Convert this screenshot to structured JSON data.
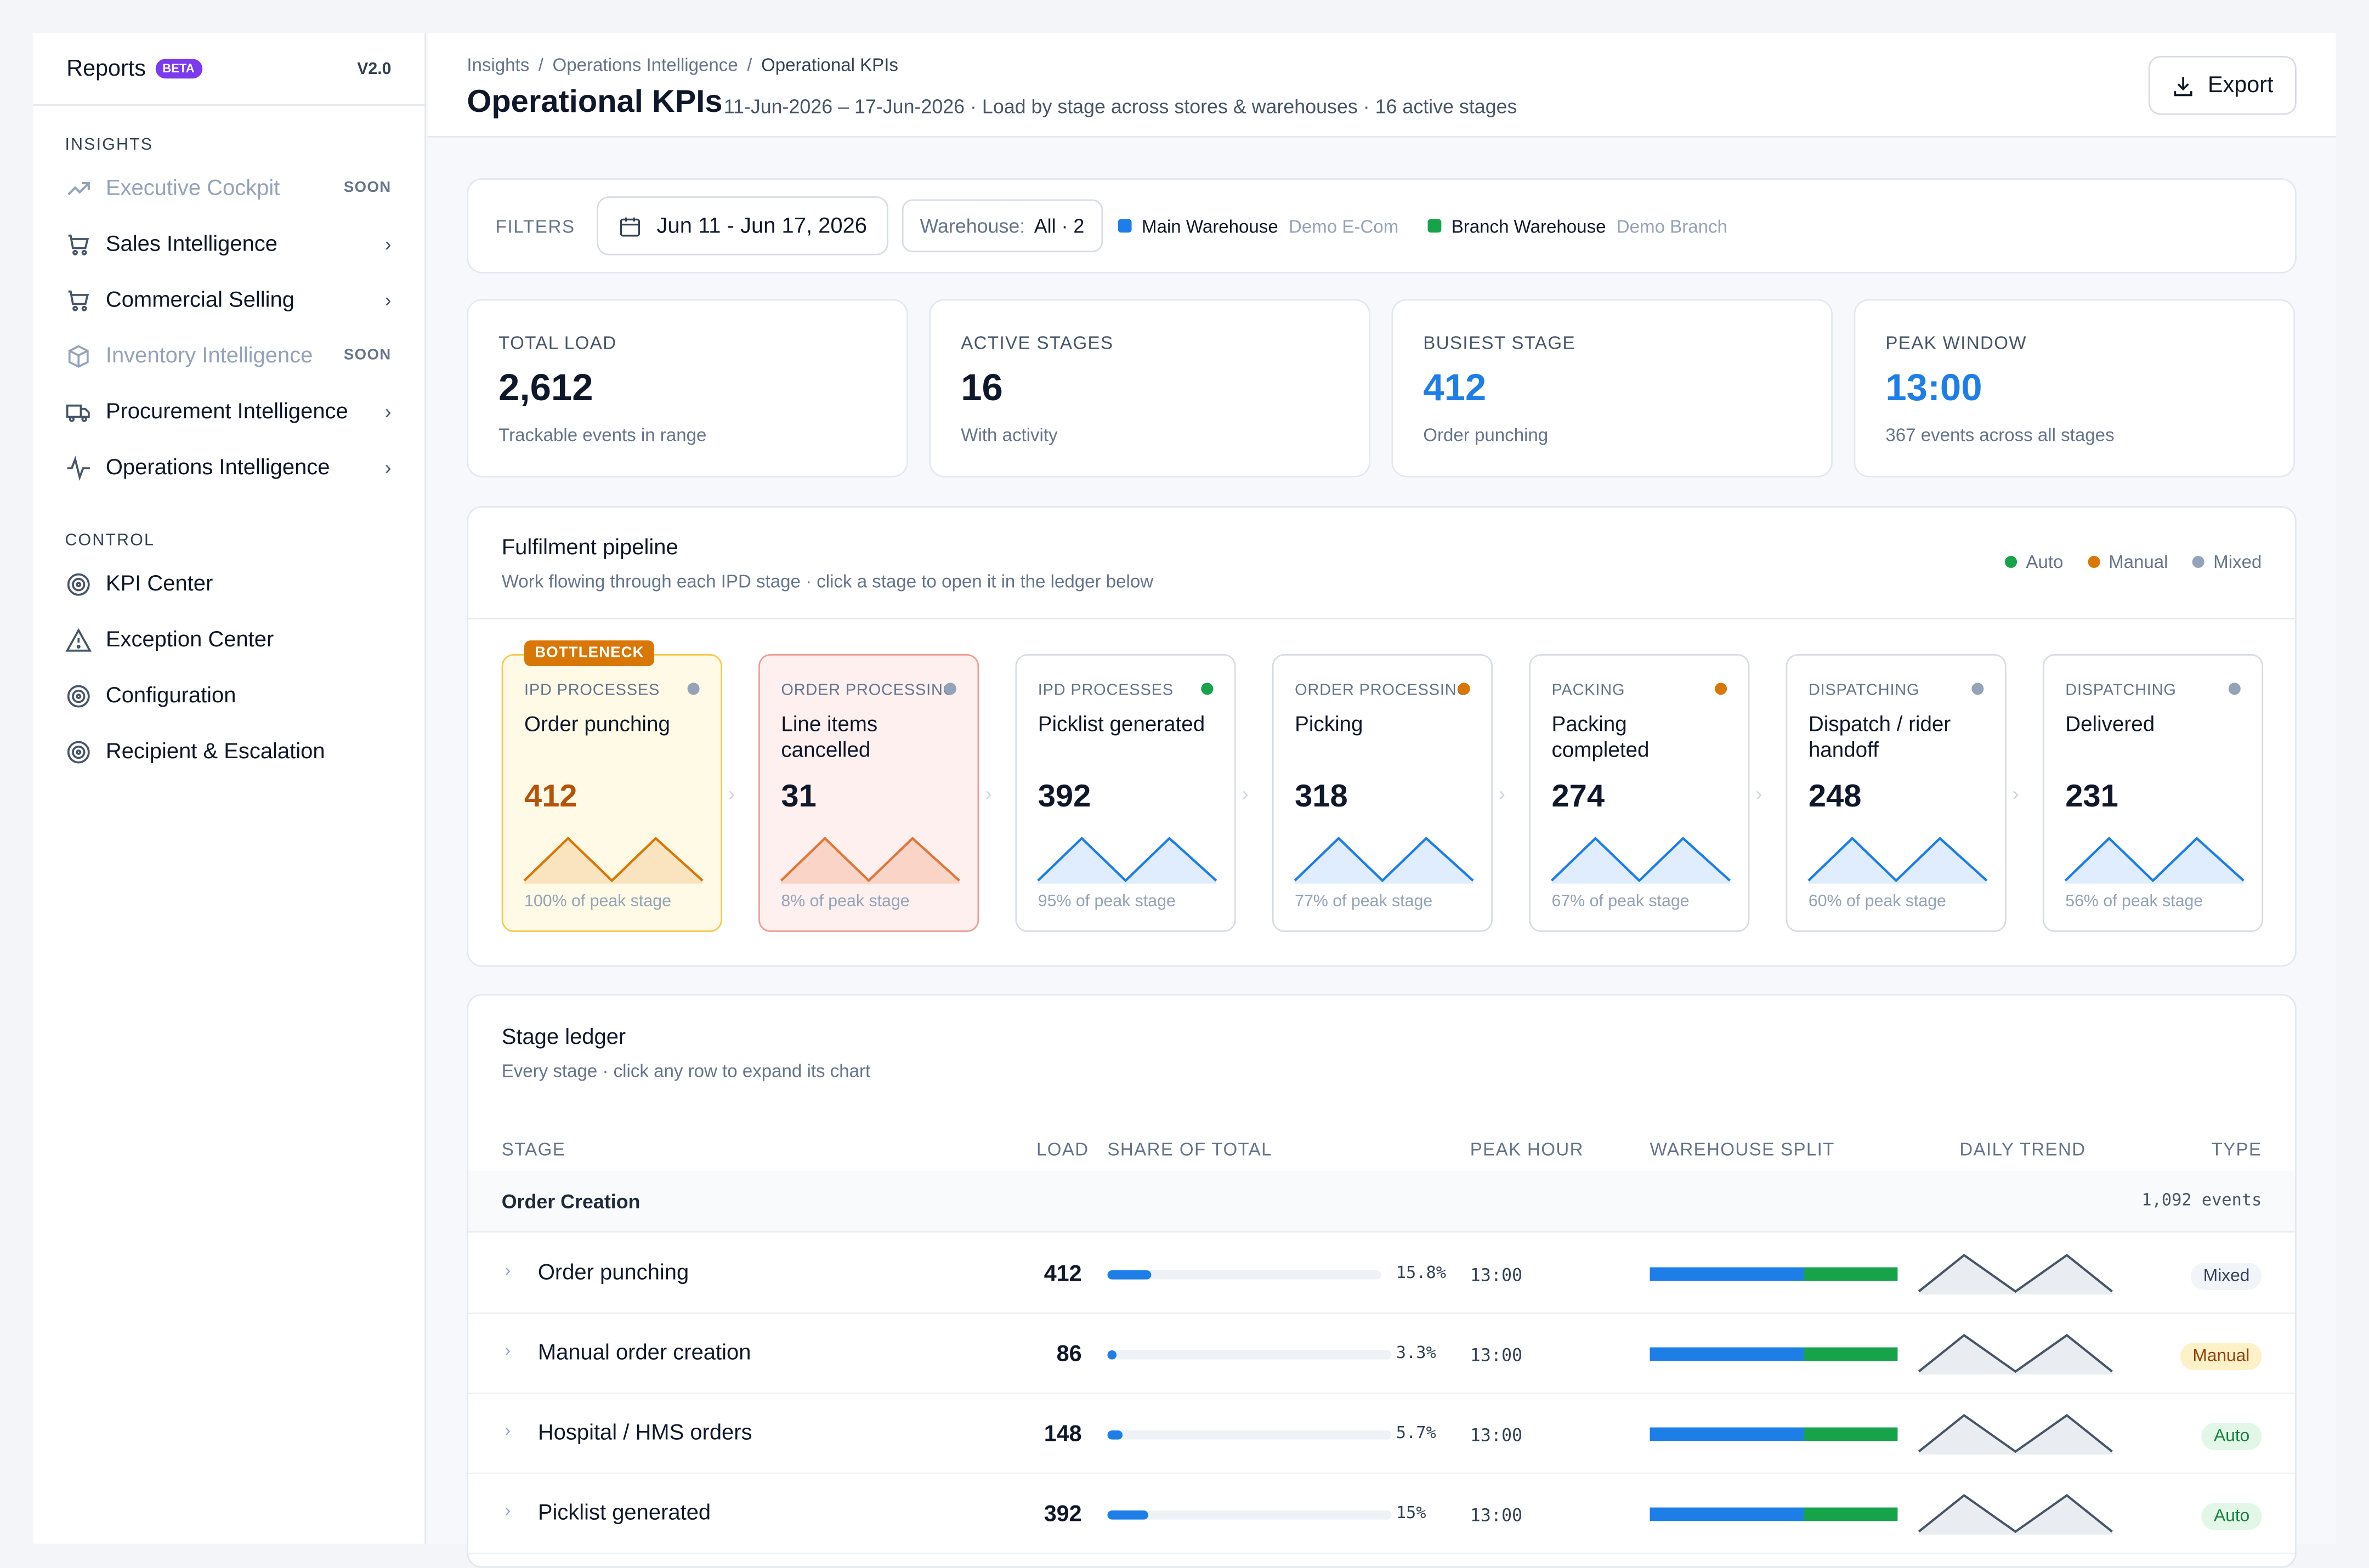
{
  "sidebar": {
    "brand": "Reports",
    "badge": "BETA",
    "version": "V2.0",
    "sections": [
      {
        "title": "INSIGHTS",
        "items": [
          {
            "label": "Executive Cockpit",
            "tag": "SOON",
            "icon": "trend-up-icon"
          },
          {
            "label": "Sales Intelligence",
            "icon": "cart-icon"
          },
          {
            "label": "Commercial Selling",
            "icon": "cart-icon"
          },
          {
            "label": "Inventory Intelligence",
            "tag": "SOON",
            "icon": "box-icon"
          },
          {
            "label": "Procurement Intelligence",
            "icon": "truck-icon"
          },
          {
            "label": "Operations Intelligence",
            "icon": "pulse-icon"
          }
        ]
      },
      {
        "title": "CONTROL",
        "items": [
          {
            "label": "KPI Center",
            "icon": "target-icon"
          },
          {
            "label": "Exception Center",
            "icon": "warning-icon"
          },
          {
            "label": "Configuration",
            "icon": "target-icon"
          },
          {
            "label": "Recipient & Escalation",
            "icon": "target-icon"
          }
        ]
      }
    ]
  },
  "header": {
    "breadcrumbs": [
      "Insights",
      "Operations Intelligence",
      "Operational KPIs"
    ],
    "title": "Operational KPIs",
    "subtitle": "11-Jun-2026 – 17-Jun-2026 · Load by stage across stores & warehouses · 16 active stages",
    "export_label": "Export"
  },
  "filters": {
    "label": "FILTERS",
    "date_range": "Jun 11 - Jun 17, 2026",
    "warehouse_label": "Warehouse:",
    "warehouse_value": "All · 2",
    "warehouses": [
      {
        "name": "Main Warehouse",
        "sub": "Demo E-Com",
        "color": "#1d7ee8"
      },
      {
        "name": "Branch Warehouse",
        "sub": "Demo Branch",
        "color": "#16a34a"
      }
    ]
  },
  "kpis": [
    {
      "title": "TOTAL LOAD",
      "value": "2,612",
      "sub": "Trackable events in range"
    },
    {
      "title": "ACTIVE STAGES",
      "value": "16",
      "sub": "With activity"
    },
    {
      "title": "BUSIEST STAGE",
      "value": "412",
      "sub": "Order punching"
    },
    {
      "title": "PEAK WINDOW",
      "value": "13:00",
      "sub": "367 events across all stages"
    }
  ],
  "pipeline": {
    "title": "Fulfilment pipeline",
    "subtitle": "Work flowing through each IPD stage · click a stage to open it in the ledger below",
    "legend": [
      {
        "label": "Auto",
        "color": "#16a34a"
      },
      {
        "label": "Manual",
        "color": "#d97706"
      },
      {
        "label": "Mixed",
        "color": "#94a3b8"
      }
    ],
    "bottleneck_label": "BOTTLENECK",
    "stages": [
      {
        "category": "IPD PROCESSES",
        "name": "Order punching",
        "value": "412",
        "pct": "100% of peak stage",
        "dot": "#94a3b8"
      },
      {
        "category": "ORDER PROCESSING",
        "name": "Line items cancelled",
        "value": "31",
        "pct": "8% of peak stage",
        "dot": "#94a3b8"
      },
      {
        "category": "IPD PROCESSES",
        "name": "Picklist generated",
        "value": "392",
        "pct": "95% of peak stage",
        "dot": "#16a34a"
      },
      {
        "category": "ORDER PROCESSING",
        "name": "Picking",
        "value": "318",
        "pct": "77% of peak stage",
        "dot": "#d97706"
      },
      {
        "category": "PACKING",
        "name": "Packing completed",
        "value": "274",
        "pct": "67% of peak stage",
        "dot": "#d97706"
      },
      {
        "category": "DISPATCHING",
        "name": "Dispatch / rider handoff",
        "value": "248",
        "pct": "60% of peak stage",
        "dot": "#94a3b8"
      },
      {
        "category": "DISPATCHING",
        "name": "Delivered",
        "value": "231",
        "pct": "56% of peak stage",
        "dot": "#94a3b8"
      }
    ]
  },
  "ledger": {
    "title": "Stage ledger",
    "subtitle": "Every stage · click any row to expand its chart",
    "columns": [
      "STAGE",
      "LOAD",
      "SHARE OF TOTAL",
      "PEAK HOUR",
      "WAREHOUSE SPLIT",
      "DAILY TREND",
      "TYPE"
    ],
    "group": {
      "name": "Order Creation",
      "events": "1,092 events"
    },
    "rows": [
      {
        "name": "Order punching",
        "load": "412",
        "share": "15.8%",
        "share_frac": 0.158,
        "peak": "13:00",
        "split_main": 0.62,
        "type": "Mixed"
      },
      {
        "name": "Manual order creation",
        "load": "86",
        "share": "3.3%",
        "share_frac": 0.033,
        "peak": "13:00",
        "split_main": 0.62,
        "type": "Manual"
      },
      {
        "name": "Hospital / HMS orders",
        "load": "148",
        "share": "5.7%",
        "share_frac": 0.057,
        "peak": "13:00",
        "split_main": 0.62,
        "type": "Auto"
      },
      {
        "name": "Picklist generated",
        "load": "392",
        "share": "15%",
        "share_frac": 0.15,
        "peak": "13:00",
        "split_main": 0.62,
        "type": "Auto"
      }
    ]
  }
}
